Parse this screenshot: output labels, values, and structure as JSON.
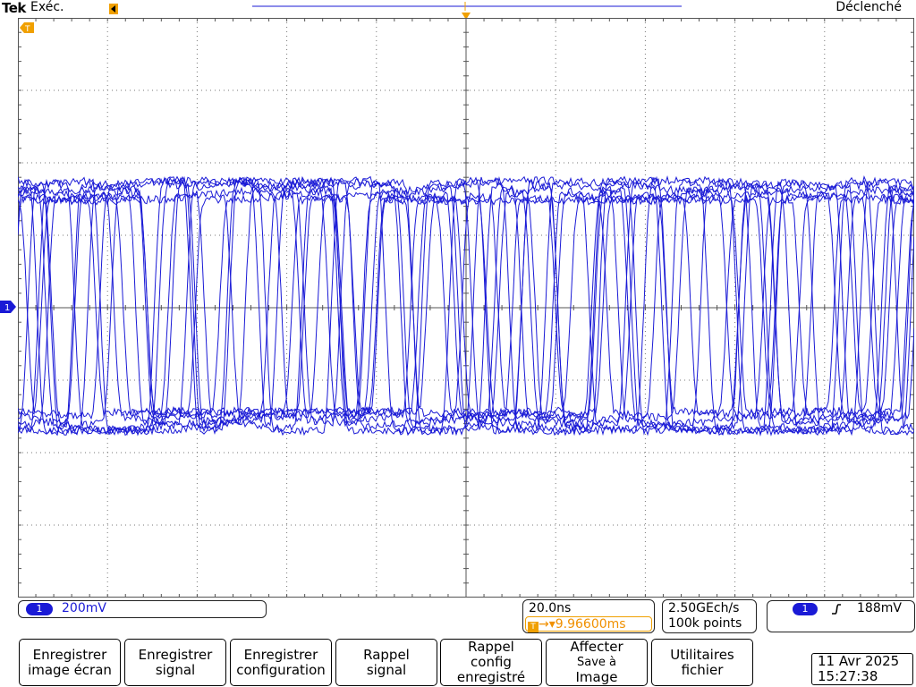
{
  "header": {
    "brand": "Tek",
    "acquisition_status": "Exéc.",
    "trigger_state": "Déclenché"
  },
  "channel1": {
    "badge": "1",
    "scale": "200mV"
  },
  "timebase": {
    "scale": "20.0ns",
    "trigger_position": "→▾9.96600ms",
    "trigger_icon": "T"
  },
  "acquisition": {
    "sample_rate": "2.50GEch/s",
    "record_length": "100k points"
  },
  "trigger": {
    "source_badge": "1",
    "slope_icon": "rising-edge-icon",
    "level": "188mV"
  },
  "softkeys": [
    {
      "line1": "Enregistrer",
      "line2": "image écran"
    },
    {
      "line1": "Enregistrer",
      "line2": "signal"
    },
    {
      "line1": "Enregistrer",
      "line2": "configuration"
    },
    {
      "line1": "Rappel",
      "line2": "signal"
    },
    {
      "line1": "Rappel",
      "line2": "config",
      "line3": "enregistré"
    },
    {
      "line1": "Affecter",
      "line2": "Save à",
      "line3": "Image"
    },
    {
      "line1": "Utilitaires",
      "line2": "fichier"
    }
  ],
  "datetime": {
    "date": "11 Avr 2025",
    "time": "15:27:38"
  },
  "markers": {
    "ground_label": "1",
    "trigger_label": "T"
  },
  "colors": {
    "trace": "#1a1ad6",
    "trigger": "#f0a000",
    "graticule": "#555555"
  }
}
